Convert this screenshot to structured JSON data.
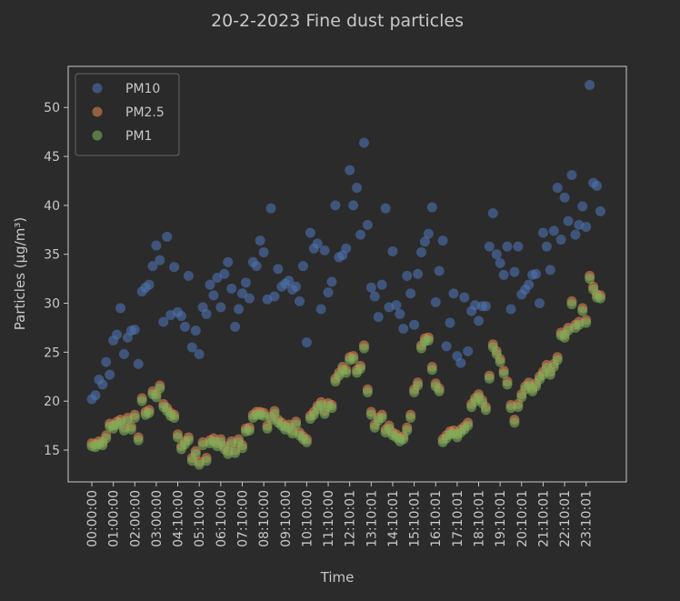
{
  "chart_data": {
    "type": "scatter",
    "title": "20-2-2023 Fine dust particles",
    "x_label": "Time",
    "y_label": "Particles (μg/m³)",
    "categories": [
      "00:00:00",
      null,
      null,
      null,
      null,
      null,
      "01:00:00",
      null,
      null,
      null,
      null,
      null,
      "02:00:00",
      null,
      null,
      null,
      null,
      null,
      "03:00:00",
      null,
      null,
      null,
      null,
      null,
      "04:10:00",
      null,
      null,
      null,
      null,
      null,
      "05:10:00",
      null,
      null,
      null,
      null,
      null,
      "06:10:00",
      null,
      null,
      null,
      null,
      null,
      "07:10:00",
      null,
      null,
      null,
      null,
      null,
      "08:10:00",
      null,
      null,
      null,
      null,
      null,
      "09:10:00",
      null,
      null,
      null,
      null,
      null,
      "10:10:00",
      null,
      null,
      null,
      null,
      null,
      "11:10:00",
      null,
      null,
      null,
      null,
      null,
      "12:10:01",
      null,
      null,
      null,
      null,
      null,
      "13:10:01",
      null,
      null,
      null,
      null,
      null,
      "14:10:01",
      null,
      null,
      null,
      null,
      null,
      "15:10:01",
      null,
      null,
      null,
      null,
      null,
      "16:10:01",
      null,
      null,
      null,
      null,
      null,
      "17:10:01",
      null,
      null,
      null,
      null,
      null,
      "18:10:01",
      null,
      null,
      null,
      null,
      null,
      "19:10:01",
      null,
      null,
      null,
      null,
      null,
      "20:10:01",
      null,
      null,
      null,
      null,
      null,
      "21:10:01",
      null,
      null,
      null,
      null,
      null,
      "22:10:01",
      null,
      null,
      null,
      null,
      null,
      "23:10:01",
      null,
      null,
      null,
      null
    ],
    "series": [
      {
        "name": "PM10",
        "color": "#4c72b0",
        "values": [
          20.2,
          20.6,
          22.2,
          21.7,
          24.0,
          22.7,
          26.2,
          26.8,
          29.5,
          24.8,
          26.5,
          27.2,
          27.3,
          23.8,
          31.2,
          31.6,
          31.9,
          33.8,
          35.9,
          34.4,
          28.1,
          36.8,
          28.8,
          33.7,
          29.1,
          28.7,
          27.6,
          32.8,
          25.5,
          27.2,
          24.8,
          29.6,
          28.9,
          31.9,
          30.8,
          32.6,
          29.6,
          33.0,
          34.2,
          31.5,
          27.6,
          29.4,
          31.0,
          32.1,
          30.5,
          34.2,
          33.8,
          36.4,
          35.2,
          30.4,
          39.7,
          30.7,
          33.5,
          31.7,
          32.0,
          32.3,
          31.4,
          31.7,
          30.2,
          33.8,
          26.0,
          37.2,
          35.6,
          36.1,
          29.4,
          35.4,
          31.1,
          32.2,
          40.0,
          34.7,
          34.9,
          35.6,
          43.6,
          40.0,
          41.8,
          37.0,
          46.4,
          38.0,
          31.6,
          30.7,
          28.6,
          31.9,
          39.7,
          29.6,
          35.3,
          29.8,
          28.9,
          27.4,
          32.8,
          31.0,
          27.8,
          33.0,
          35.2,
          36.3,
          37.1,
          39.8,
          30.1,
          33.3,
          36.4,
          25.6,
          28.0,
          31.0,
          24.6,
          23.9,
          30.6,
          25.1,
          29.2,
          29.8,
          28.2,
          29.7,
          29.7,
          35.8,
          39.2,
          35.0,
          34.1,
          32.9,
          35.8,
          29.4,
          33.2,
          35.8,
          30.9,
          31.4,
          31.9,
          32.9,
          33.0,
          30.0,
          37.2,
          35.8,
          33.4,
          37.4,
          41.8,
          36.5,
          40.8,
          38.4,
          43.1,
          37.0,
          38.0,
          39.9,
          37.8,
          52.3,
          42.3,
          42.0,
          39.4
        ]
      },
      {
        "name": "PM2.5",
        "color": "#dd8452",
        "values": [
          15.7,
          15.6,
          15.9,
          15.8,
          16.5,
          17.7,
          17.5,
          17.9,
          18.1,
          17.3,
          18.3,
          17.4,
          18.6,
          16.3,
          20.3,
          18.9,
          19.1,
          21.0,
          20.7,
          21.6,
          19.7,
          19.3,
          18.8,
          18.6,
          16.6,
          15.4,
          15.9,
          16.3,
          14.2,
          14.9,
          13.8,
          15.8,
          14.2,
          16.0,
          16.2,
          15.7,
          16.1,
          15.4,
          14.9,
          15.9,
          15.0,
          16.1,
          15.5,
          17.2,
          17.3,
          18.6,
          18.9,
          18.9,
          18.8,
          17.5,
          18.4,
          19.0,
          18.1,
          17.8,
          17.4,
          17.6,
          17.0,
          17.9,
          16.8,
          16.4,
          16.1,
          18.5,
          18.9,
          19.5,
          19.9,
          19.0,
          19.8,
          19.6,
          22.3,
          22.9,
          23.5,
          23.2,
          24.5,
          24.6,
          23.2,
          23.6,
          25.7,
          21.2,
          18.9,
          17.6,
          18.3,
          18.6,
          17.1,
          17.5,
          16.8,
          16.6,
          16.2,
          16.4,
          17.3,
          18.6,
          21.2,
          21.9,
          25.7,
          26.4,
          26.5,
          23.5,
          21.8,
          21.3,
          16.1,
          16.5,
          16.9,
          17.0,
          16.6,
          17.1,
          17.4,
          17.8,
          19.7,
          20.3,
          20.7,
          20.1,
          19.4,
          22.6,
          25.8,
          25.1,
          24.3,
          23.1,
          22.0,
          19.6,
          18.1,
          19.7,
          20.7,
          21.5,
          21.9,
          21.3,
          21.8,
          22.5,
          23.0,
          23.7,
          23.0,
          23.8,
          24.5,
          27.0,
          26.8,
          27.5,
          30.2,
          27.8,
          28.1,
          29.5,
          28.3,
          32.8,
          31.7,
          30.9,
          30.8
        ]
      },
      {
        "name": "PM1",
        "color": "#7ab05a",
        "values": [
          15.4,
          15.3,
          15.6,
          15.5,
          16.2,
          17.4,
          17.2,
          17.6,
          17.8,
          17.0,
          18.0,
          17.1,
          18.3,
          16.0,
          20.0,
          18.6,
          18.8,
          20.7,
          20.4,
          21.3,
          19.4,
          19.0,
          18.5,
          18.3,
          16.3,
          15.1,
          15.6,
          16.0,
          13.9,
          14.6,
          13.5,
          15.5,
          13.9,
          15.7,
          15.9,
          15.4,
          15.8,
          15.1,
          14.6,
          15.6,
          14.7,
          15.8,
          15.2,
          16.9,
          17.0,
          18.3,
          18.6,
          18.6,
          18.5,
          17.2,
          18.1,
          18.7,
          17.8,
          17.5,
          17.1,
          17.3,
          16.7,
          17.6,
          16.5,
          16.1,
          15.8,
          18.2,
          18.6,
          19.2,
          19.6,
          18.7,
          19.5,
          19.3,
          22.0,
          22.6,
          23.2,
          22.9,
          24.2,
          24.3,
          22.9,
          23.3,
          25.4,
          20.9,
          18.6,
          17.3,
          18.0,
          18.3,
          16.8,
          17.2,
          16.5,
          16.3,
          15.9,
          16.1,
          17.0,
          18.3,
          20.9,
          21.6,
          25.4,
          26.1,
          26.2,
          23.2,
          21.5,
          21.0,
          15.8,
          16.2,
          16.6,
          16.7,
          16.3,
          16.8,
          17.1,
          17.5,
          19.4,
          20.0,
          20.4,
          19.8,
          19.1,
          22.3,
          25.5,
          24.8,
          24.0,
          22.8,
          21.7,
          19.3,
          17.8,
          19.4,
          20.4,
          21.2,
          21.6,
          21.0,
          21.5,
          22.2,
          22.7,
          23.4,
          22.7,
          23.5,
          24.2,
          26.7,
          26.5,
          27.2,
          29.9,
          27.5,
          27.8,
          29.2,
          28.0,
          32.5,
          31.4,
          30.6,
          30.5
        ]
      }
    ],
    "ylim": [
      11.75,
      54.2
    ],
    "yticks": [
      15,
      20,
      25,
      30,
      35,
      40,
      45,
      50
    ],
    "grid": false,
    "legend": "upper left"
  }
}
